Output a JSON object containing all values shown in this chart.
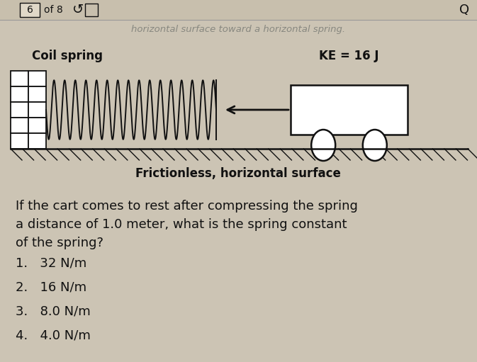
{
  "bg_color": "#ccc4b4",
  "header_text": "horizontal surface toward a horizontal spring.",
  "label_coil": "Coil spring",
  "label_ke": "KE = 16 J",
  "surface_label": "Frictionless, horizontal surface",
  "question_line1": "If the cart comes to rest after compressing the spring",
  "question_line2": "a distance of 1.0 meter, what is the spring constant",
  "question_line3": "of the spring?",
  "choices": [
    "1.   32 N/m",
    "2.   16 N/m",
    "3.   8.0 N/m",
    "4.   4.0 N/m"
  ],
  "text_color": "#111111",
  "line_color": "#111111",
  "nav_bg": "#c8bfad",
  "nav_box_text": "6",
  "nav_of_text": "of 8"
}
